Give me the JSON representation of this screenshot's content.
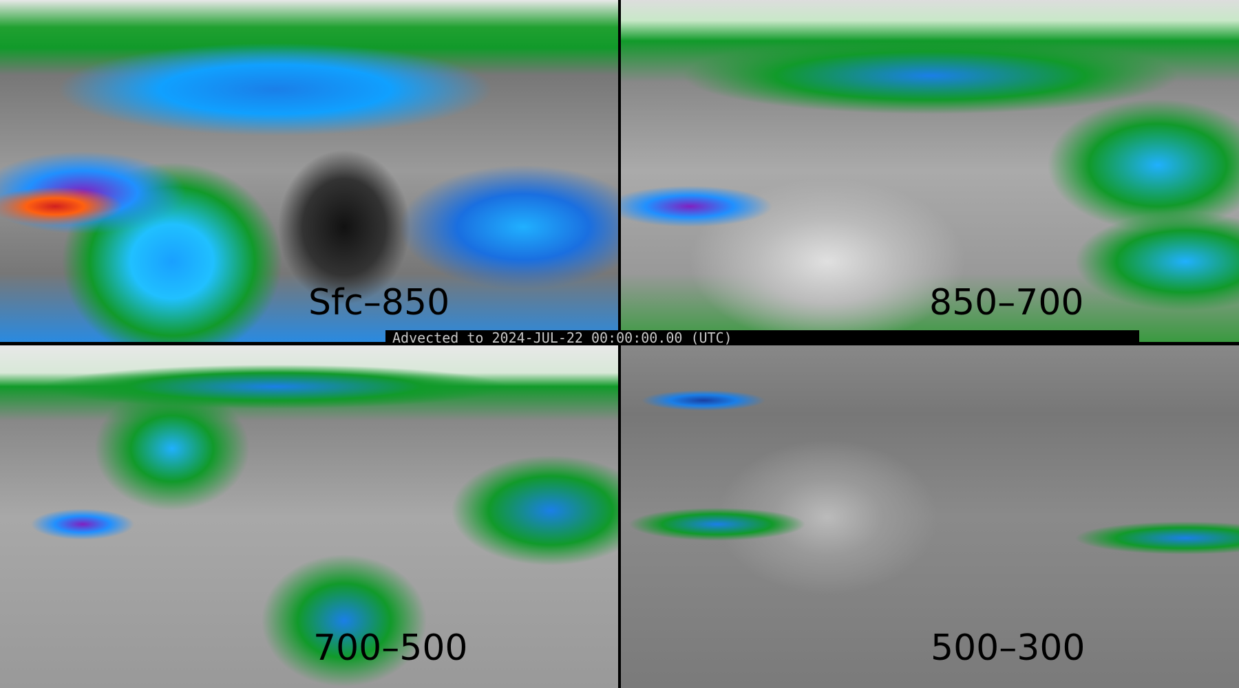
{
  "banner": {
    "text": "Advected to 2024-JUL-22 00:00:00.00 (UTC)"
  },
  "panels": [
    {
      "label": "Sfc–850"
    },
    {
      "label": "850–700"
    },
    {
      "label": "700–500"
    },
    {
      "label": "500–300"
    }
  ],
  "colors": {
    "low": "#808080",
    "mid": "#119a2a",
    "high": "#1a7fe8",
    "higher": "#8020c0",
    "max": "#d02020"
  }
}
